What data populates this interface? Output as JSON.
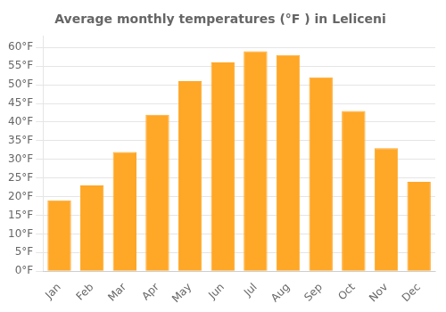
{
  "chart_data": {
    "type": "bar",
    "title": "Average monthly temperatures (°F ) in Leliceni",
    "categories": [
      "Jan",
      "Feb",
      "Mar",
      "Apr",
      "May",
      "Jun",
      "Jul",
      "Aug",
      "Sep",
      "Oct",
      "Nov",
      "Dec"
    ],
    "values": [
      19,
      23,
      32,
      42,
      51,
      56,
      59,
      58,
      52,
      43,
      33,
      24
    ],
    "color": "#FFA726",
    "ylim": [
      0,
      63
    ],
    "yticks": [
      {
        "value": 0,
        "label": "0°F"
      },
      {
        "value": 5,
        "label": "5°F"
      },
      {
        "value": 10,
        "label": "10°F"
      },
      {
        "value": 15,
        "label": "15°F"
      },
      {
        "value": 20,
        "label": "20°F"
      },
      {
        "value": 25,
        "label": "25°F"
      },
      {
        "value": 30,
        "label": "30°F"
      },
      {
        "value": 35,
        "label": "35°F"
      },
      {
        "value": 40,
        "label": "40°F"
      },
      {
        "value": 45,
        "label": "45°F"
      },
      {
        "value": 50,
        "label": "50°F"
      },
      {
        "value": 55,
        "label": "55°F"
      },
      {
        "value": 60,
        "label": "60°F"
      }
    ],
    "grid": true
  }
}
